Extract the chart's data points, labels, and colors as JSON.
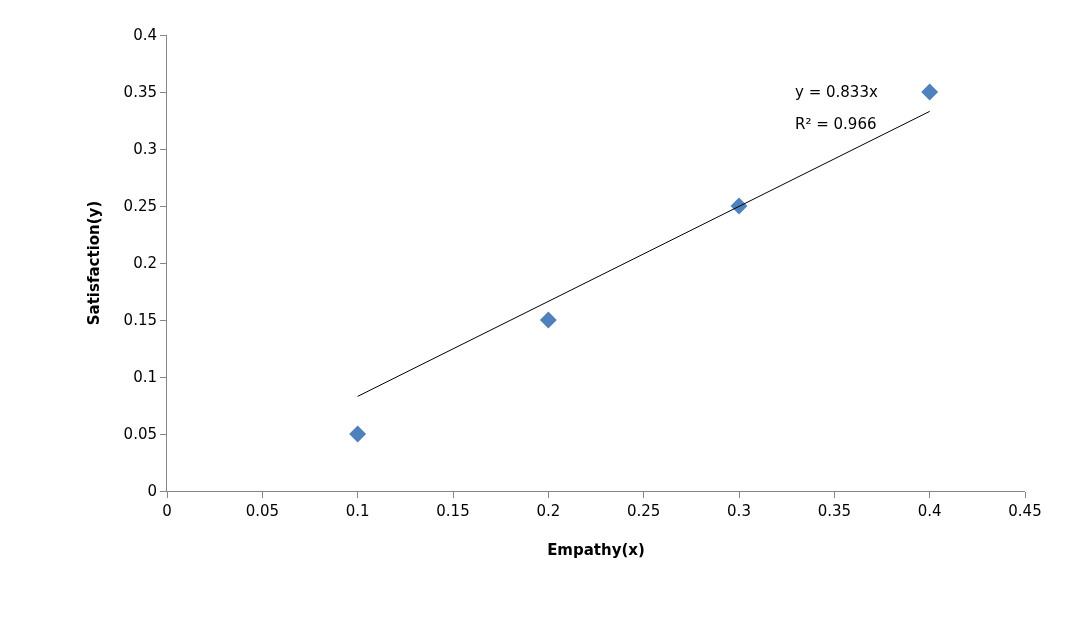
{
  "chart_data": {
    "type": "scatter",
    "xlabel": "Empathy(x)",
    "ylabel": "Satisfaction(y)",
    "x": [
      0.1,
      0.2,
      0.3,
      0.4
    ],
    "series": [
      {
        "color": "#4f81bd",
        "marker": "diamond",
        "values": [
          0.05,
          0.15,
          0.25,
          0.35
        ]
      },
      {
        "type": "line",
        "color": "#000000",
        "marker": "none",
        "line_style": "solid",
        "x": [
          0.1,
          0.4
        ],
        "values": [
          0.083,
          0.333
        ]
      }
    ],
    "annotations": [
      "y = 0.833x",
      "R² = 0.966"
    ],
    "xlim": [
      0,
      0.45
    ],
    "xticks": [
      0,
      0.05,
      0.1,
      0.15,
      0.2,
      0.25,
      0.3,
      0.35,
      0.4,
      0.45
    ],
    "ylim": [
      0,
      0.4
    ],
    "yticks": [
      0,
      0.05,
      0.1,
      0.15,
      0.2,
      0.25,
      0.3,
      0.35,
      0.4
    ],
    "grid": false
  }
}
